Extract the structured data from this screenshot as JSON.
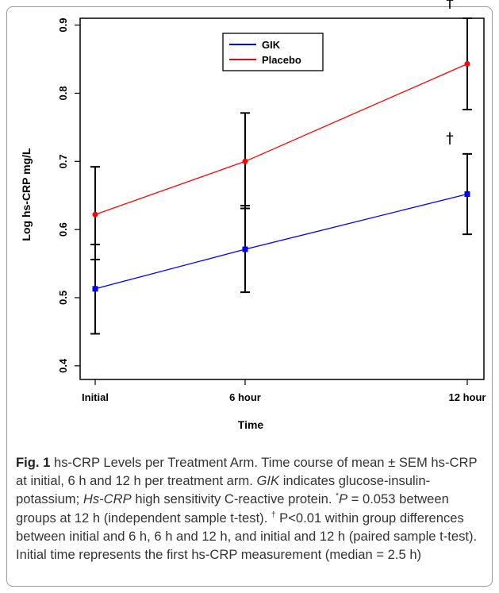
{
  "chart_data": {
    "type": "line",
    "categories": [
      "Initial",
      "6 hour",
      "12 hour"
    ],
    "xlabel": "Time",
    "ylabel": "Log hs-CRP mg/L",
    "ylim": [
      0.38,
      0.91
    ],
    "yticks": [
      "0.4",
      "0.5",
      "0.6",
      "0.7",
      "0.8",
      "0.9"
    ],
    "series": [
      {
        "name": "GIK",
        "color": "#0000ff",
        "values": [
          0.513,
          0.571,
          0.652
        ],
        "err_low": [
          0.447,
          0.508,
          0.593
        ],
        "err_high": [
          0.578,
          0.635,
          0.711
        ],
        "marks": [
          "",
          "",
          "†"
        ]
      },
      {
        "name": "Placebo",
        "color": "#ff0000",
        "values": [
          0.622,
          0.7,
          0.843
        ],
        "err_low": [
          0.556,
          0.631,
          0.776
        ],
        "err_high": [
          0.692,
          0.771,
          0.91
        ],
        "marks": [
          "",
          "",
          "*\n†"
        ]
      }
    ],
    "legend": "top-center",
    "grid": false
  },
  "caption": {
    "fig_label": "Fig. 1",
    "title": "hs-CRP Levels per Treatment Arm.",
    "text1": "Time course of mean ± SEM hs-CRP at initial, 6 h and 12 h per treatment arm.",
    "abbr1": "GIK",
    "text2": "indicates glucose-insulin-potassium;",
    "abbr2": "Hs-CRP",
    "text3": "high sensitivity C-reactive protein.",
    "sup1": "*",
    "pvar": "P",
    "text4": "= 0.053 between groups at 12 h (independent sample t-test).",
    "sup2": "†",
    "text5": "P˂0.01 within group differences between initial and 6 h, 6 h and 12 h, and initial and 12 h (paired sample t-test). Initial time represents the first hs-CRP measurement (median = 2.5 h)"
  }
}
